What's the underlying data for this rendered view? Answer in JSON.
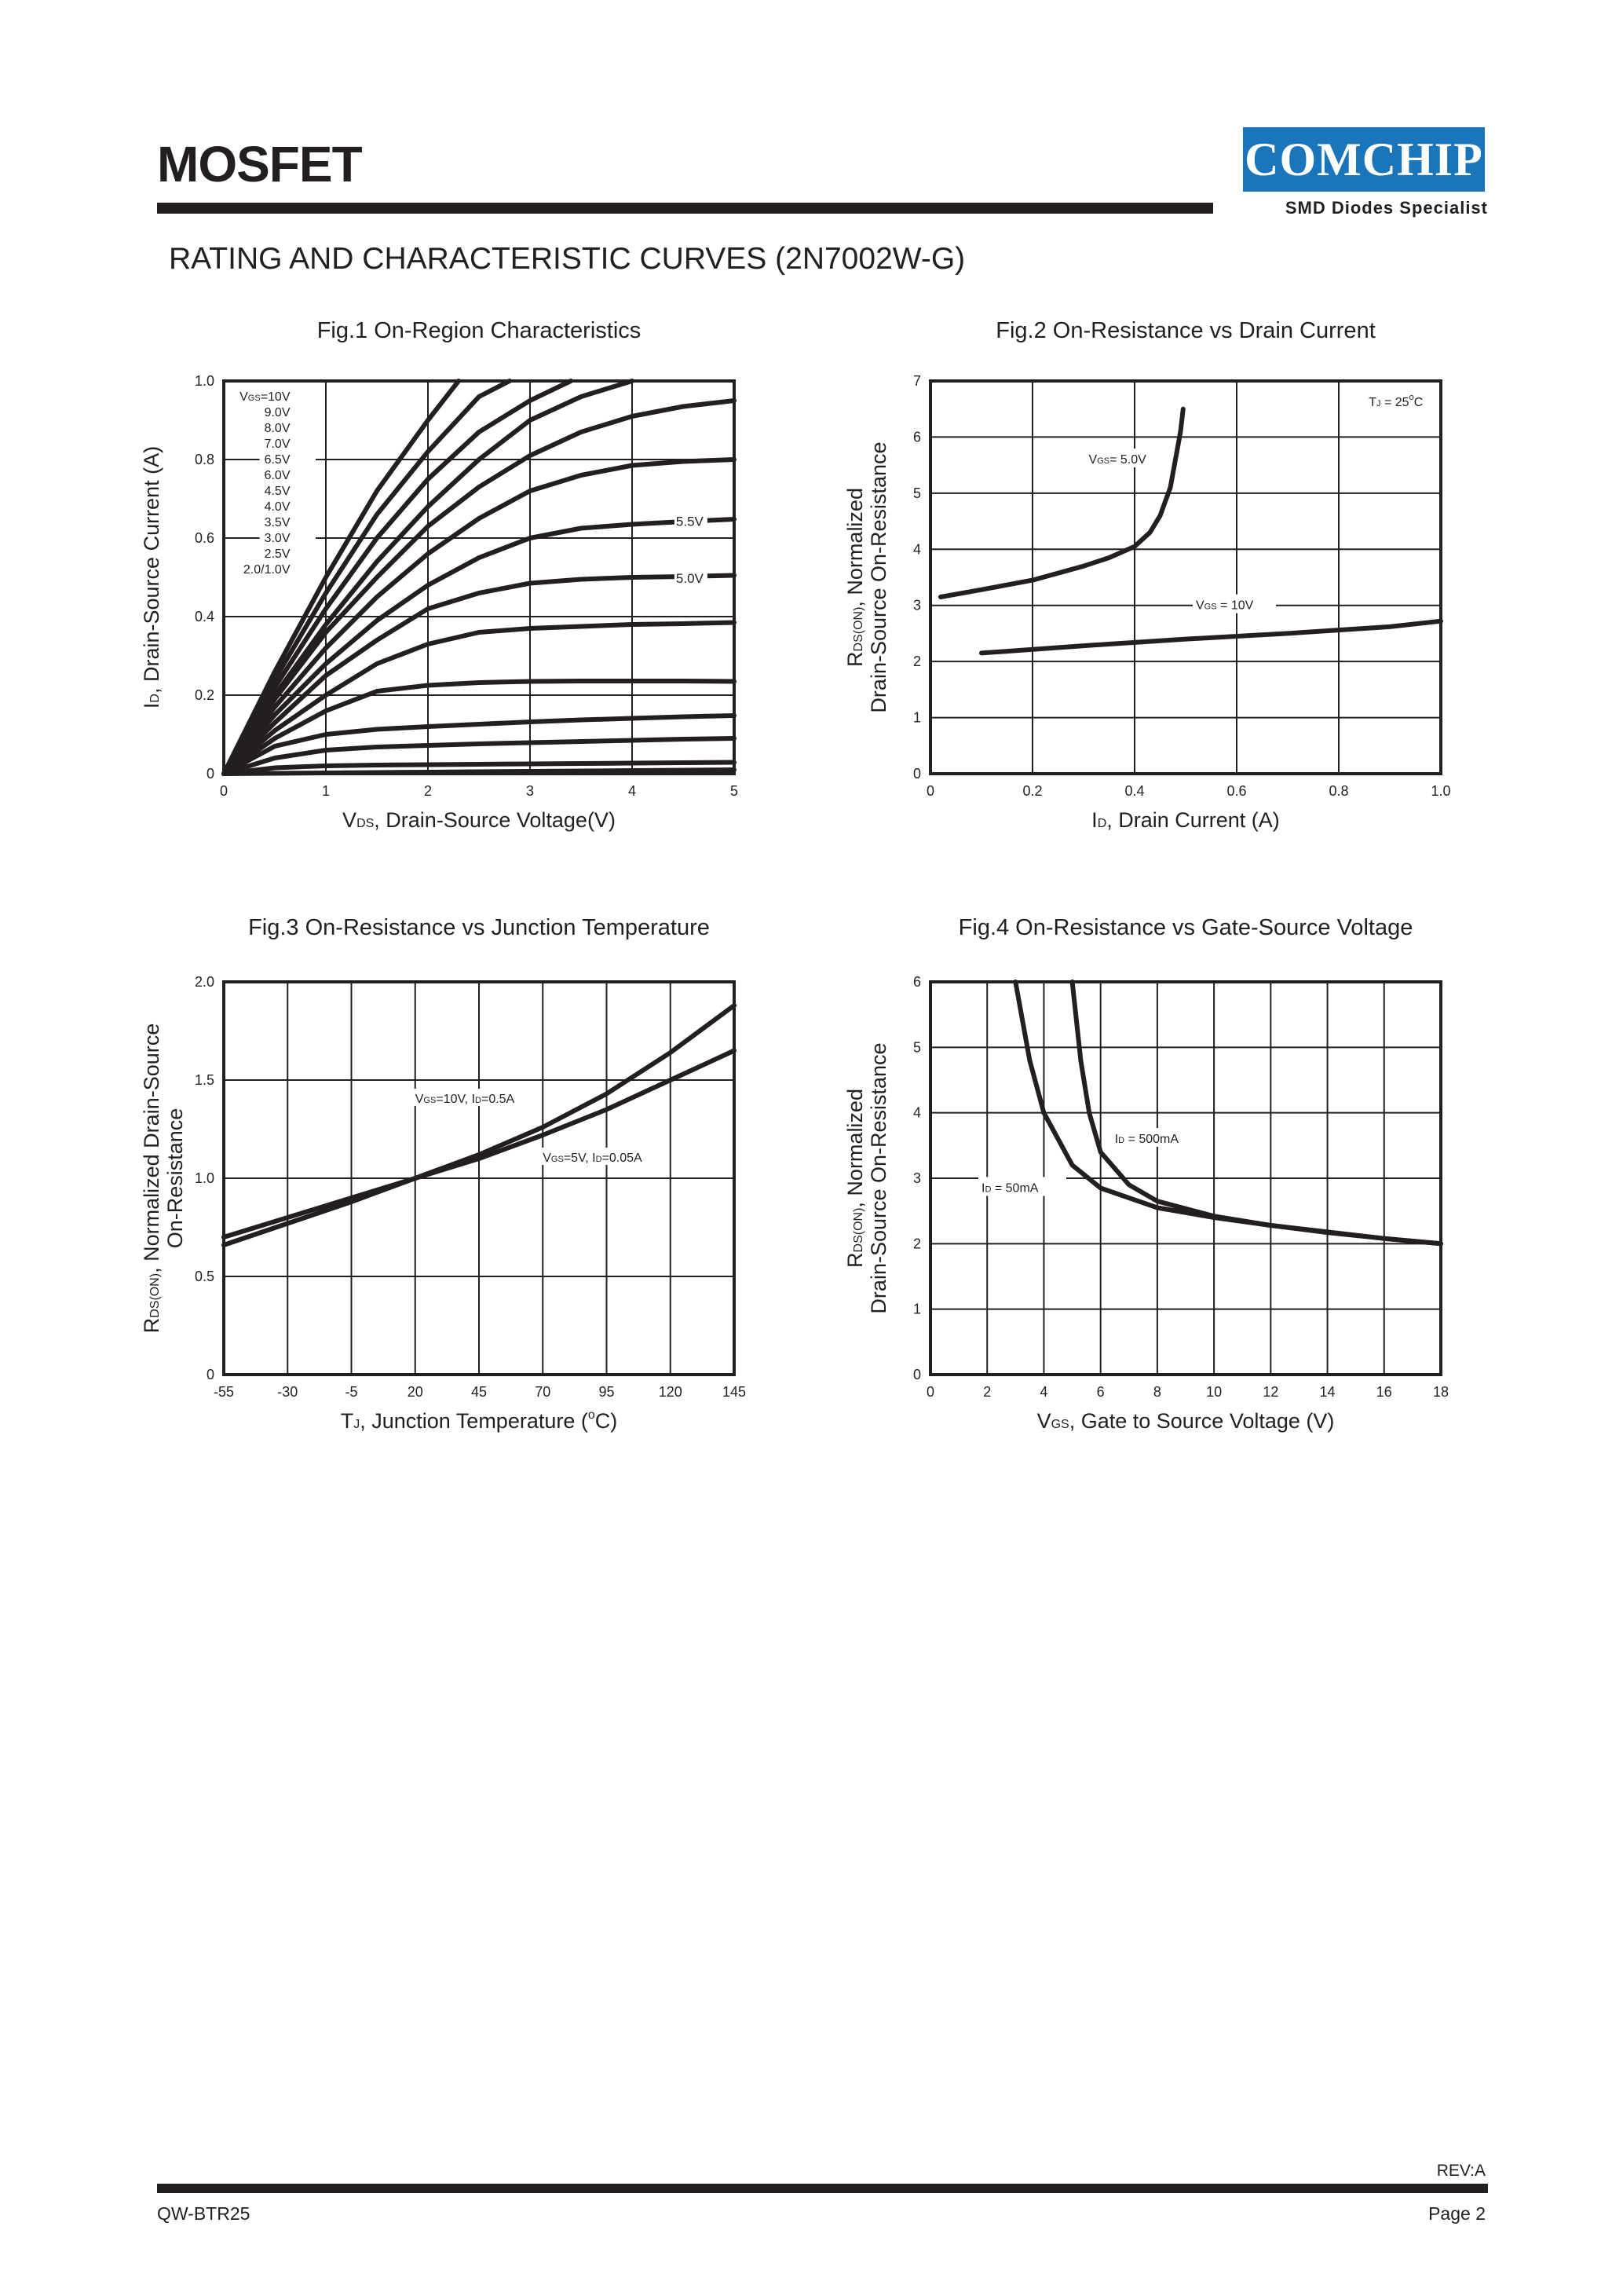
{
  "header": {
    "title": "MOSFET",
    "logo_text": "COMCHIP",
    "logo_tagline": "SMD Diodes Specialist",
    "section_title": "RATING AND CHARACTERISTIC CURVES (2N7002W-G)"
  },
  "footer": {
    "rev": "REV:A",
    "doc": "QW-BTR25",
    "page": "Page 2"
  },
  "colors": {
    "ink": "#231f20",
    "logo_blue": "#1b75bb"
  },
  "chart_data": [
    {
      "type": "line",
      "title": "Fig.1 On-Region Characteristics",
      "xlabel": "V",
      "xlabel_sub": "DS",
      "xlabel_rest": ", Drain-Source Voltage(V)",
      "ylabel": "I",
      "ylabel_sub": "D",
      "ylabel_rest": ", Drain-Source Current (A)",
      "xlim": [
        0,
        5
      ],
      "ylim": [
        0,
        1.0
      ],
      "xticks": [
        0,
        1,
        2,
        3,
        4,
        5
      ],
      "xtick_labels": [
        "0",
        "1",
        "2",
        "3",
        "4",
        "5"
      ],
      "yticks": [
        0,
        0.2,
        0.4,
        0.6,
        0.8,
        1.0
      ],
      "ytick_labels": [
        "0",
        "0.2",
        "0.4",
        "0.6",
        "0.8",
        "1.0"
      ],
      "grid": true,
      "legend_label": "V",
      "legend_label_sub": "GS",
      "legend_label_rest": "=10V",
      "legend_lines": [
        "9.0V",
        "8.0V",
        "7.0V",
        "6.5V",
        "6.0V",
        "4.5V",
        "4.0V",
        "3.5V",
        "3.0V",
        "2.5V",
        "2.0/1.0V"
      ],
      "annotations": [
        "5.5V",
        "5.0V"
      ],
      "series": [
        {
          "name": "10V",
          "x": [
            0,
            0.5,
            1,
            1.5,
            2,
            2.3
          ],
          "y": [
            0,
            0.26,
            0.5,
            0.72,
            0.9,
            1.0
          ]
        },
        {
          "name": "9.0V",
          "x": [
            0,
            0.5,
            1,
            1.5,
            2,
            2.5,
            2.8
          ],
          "y": [
            0,
            0.24,
            0.46,
            0.66,
            0.82,
            0.96,
            1.0
          ]
        },
        {
          "name": "8.0V",
          "x": [
            0,
            0.5,
            1,
            1.5,
            2,
            2.5,
            3,
            3.4
          ],
          "y": [
            0,
            0.22,
            0.42,
            0.6,
            0.75,
            0.87,
            0.95,
            1.0
          ]
        },
        {
          "name": "7.0V",
          "x": [
            0,
            0.5,
            1,
            1.5,
            2,
            2.5,
            3,
            3.5,
            4
          ],
          "y": [
            0,
            0.2,
            0.38,
            0.54,
            0.68,
            0.8,
            0.9,
            0.96,
            1.0
          ]
        },
        {
          "name": "6.5V",
          "x": [
            0,
            0.5,
            1,
            1.5,
            2,
            2.5,
            3,
            3.5,
            4,
            4.5,
            5
          ],
          "y": [
            0,
            0.19,
            0.36,
            0.5,
            0.63,
            0.73,
            0.81,
            0.87,
            0.91,
            0.935,
            0.95
          ]
        },
        {
          "name": "6.0V",
          "x": [
            0,
            0.5,
            1,
            1.5,
            2,
            2.5,
            3,
            3.5,
            4,
            4.5,
            5
          ],
          "y": [
            0,
            0.17,
            0.32,
            0.45,
            0.56,
            0.65,
            0.72,
            0.76,
            0.785,
            0.795,
            0.8
          ]
        },
        {
          "name": "5.5V",
          "x": [
            0,
            0.5,
            1,
            1.5,
            2,
            2.5,
            3,
            3.5,
            4,
            4.5,
            5
          ],
          "y": [
            0,
            0.15,
            0.28,
            0.39,
            0.48,
            0.55,
            0.6,
            0.625,
            0.635,
            0.642,
            0.648
          ]
        },
        {
          "name": "5.0V",
          "x": [
            0,
            0.5,
            1,
            1.5,
            2,
            2.5,
            3,
            3.5,
            4,
            4.5,
            5
          ],
          "y": [
            0,
            0.13,
            0.25,
            0.34,
            0.42,
            0.46,
            0.485,
            0.495,
            0.5,
            0.502,
            0.505
          ]
        },
        {
          "name": "4.5V",
          "x": [
            0,
            0.5,
            1,
            1.5,
            2,
            2.5,
            3,
            3.5,
            4,
            4.5,
            5
          ],
          "y": [
            0,
            0.11,
            0.2,
            0.28,
            0.33,
            0.36,
            0.37,
            0.375,
            0.38,
            0.382,
            0.385
          ]
        },
        {
          "name": "4.0V",
          "x": [
            0,
            0.5,
            1,
            1.5,
            2,
            2.5,
            3,
            3.5,
            4,
            4.5,
            5
          ],
          "y": [
            0,
            0.09,
            0.16,
            0.21,
            0.225,
            0.232,
            0.235,
            0.236,
            0.236,
            0.236,
            0.235
          ]
        },
        {
          "name": "3.5V",
          "x": [
            0,
            0.5,
            1,
            1.5,
            2,
            2.5,
            3,
            3.5,
            4,
            4.5,
            5
          ],
          "y": [
            0,
            0.07,
            0.1,
            0.113,
            0.12,
            0.126,
            0.132,
            0.137,
            0.141,
            0.145,
            0.148
          ]
        },
        {
          "name": "3.0V",
          "x": [
            0,
            0.5,
            1,
            1.5,
            2,
            2.5,
            3,
            3.5,
            4,
            4.5,
            5
          ],
          "y": [
            0,
            0.04,
            0.06,
            0.068,
            0.072,
            0.076,
            0.079,
            0.082,
            0.085,
            0.088,
            0.09
          ]
        },
        {
          "name": "2.5V",
          "x": [
            0,
            0.5,
            1,
            1.5,
            2,
            2.5,
            3,
            3.5,
            4,
            4.5,
            5
          ],
          "y": [
            0,
            0.015,
            0.02,
            0.022,
            0.023,
            0.024,
            0.025,
            0.026,
            0.027,
            0.028,
            0.029
          ]
        },
        {
          "name": "2.0/1.0V",
          "x": [
            0,
            1,
            2,
            3,
            4,
            5
          ],
          "y": [
            0,
            0.002,
            0.004,
            0.006,
            0.008,
            0.01
          ]
        }
      ]
    },
    {
      "type": "line",
      "title": "Fig.2 On-Resistance vs Drain Current",
      "xlabel": "I",
      "xlabel_sub": "D",
      "xlabel_rest": ", Drain Current (A)",
      "ylabel": "R",
      "ylabel_sub": "DS(ON)",
      "ylabel_rest": ", Normalized",
      "ylabel2": "Drain-Source On-Resistance",
      "xlim": [
        0,
        1.0
      ],
      "ylim": [
        0,
        7
      ],
      "xticks": [
        0,
        0.2,
        0.4,
        0.6,
        0.8,
        1.0
      ],
      "xtick_labels": [
        "0",
        "0.2",
        "0.4",
        "0.6",
        "0.8",
        "1.0"
      ],
      "yticks": [
        0,
        1,
        2,
        3,
        4,
        5,
        6,
        7
      ],
      "ytick_labels": [
        "0",
        "1",
        "2",
        "3",
        "4",
        "5",
        "6",
        "7"
      ],
      "grid": true,
      "condition": "T",
      "condition_sub": "J",
      "condition_rest": " = 25",
      "condition_sup": "o",
      "condition_end": "C",
      "series": [
        {
          "name": "V",
          "name_sub": "GS",
          "name_rest": "= 5.0V",
          "x": [
            0.02,
            0.1,
            0.2,
            0.3,
            0.35,
            0.4,
            0.43,
            0.45,
            0.47,
            0.48,
            0.49,
            0.495
          ],
          "y": [
            3.15,
            3.28,
            3.45,
            3.7,
            3.85,
            4.05,
            4.3,
            4.6,
            5.1,
            5.6,
            6.1,
            6.5
          ]
        },
        {
          "name": "V",
          "name_sub": "GS",
          "name_rest": " = 10V",
          "x": [
            0.1,
            0.3,
            0.5,
            0.7,
            0.9,
            1.0
          ],
          "y": [
            2.15,
            2.28,
            2.4,
            2.5,
            2.62,
            2.72
          ]
        }
      ]
    },
    {
      "type": "line",
      "title": "Fig.3 On-Resistance vs Junction Temperature",
      "xlabel": "T",
      "xlabel_sub": "J",
      "xlabel_rest": ", Junction Temperature (",
      "xlabel_sup": "o",
      "xlabel_end": "C)",
      "ylabel": "R",
      "ylabel_sub": "DS(ON)",
      "ylabel_rest": ", Normalized Drain-Source",
      "ylabel2": "On-Resistance",
      "xlim": [
        -55,
        145
      ],
      "ylim": [
        0,
        2.0
      ],
      "xticks": [
        -55,
        -30,
        -5,
        20,
        45,
        70,
        95,
        120,
        145
      ],
      "xtick_labels": [
        "-55",
        "-30",
        "-5",
        "20",
        "45",
        "70",
        "95",
        "120",
        "145"
      ],
      "yticks": [
        0,
        0.5,
        1.0,
        1.5,
        2.0
      ],
      "ytick_labels": [
        "0",
        "0.5",
        "1.0",
        "1.5",
        "2.0"
      ],
      "grid": true,
      "series": [
        {
          "name": "V",
          "name_sub": "GS",
          "name_rest": "=10V, I",
          "name_sub2": "D",
          "name_end": "=0.5A",
          "x": [
            -55,
            -30,
            -5,
            20,
            45,
            70,
            95,
            120,
            145
          ],
          "y": [
            0.66,
            0.77,
            0.88,
            1.0,
            1.12,
            1.26,
            1.43,
            1.64,
            1.88
          ]
        },
        {
          "name": "V",
          "name_sub": "GS",
          "name_rest": "=5V, I",
          "name_sub2": "D",
          "name_end": "=0.05A",
          "x": [
            -55,
            -30,
            -5,
            20,
            45,
            70,
            95,
            120,
            145
          ],
          "y": [
            0.7,
            0.8,
            0.9,
            1.0,
            1.1,
            1.22,
            1.35,
            1.5,
            1.65
          ]
        }
      ]
    },
    {
      "type": "line",
      "title": "Fig.4 On-Resistance vs Gate-Source Voltage",
      "xlabel": "V",
      "xlabel_sub": "GS",
      "xlabel_rest": ", Gate to Source Voltage (V)",
      "ylabel": "R",
      "ylabel_sub": "DS(ON)",
      "ylabel_rest": ", Normalized",
      "ylabel2": "Drain-Source On-Resistance",
      "xlim": [
        0,
        18
      ],
      "ylim": [
        0,
        6
      ],
      "xticks": [
        0,
        2,
        4,
        6,
        8,
        10,
        12,
        14,
        16,
        18
      ],
      "xtick_labels": [
        "0",
        "2",
        "4",
        "6",
        "8",
        "10",
        "12",
        "14",
        "16",
        "18"
      ],
      "yticks": [
        0,
        1,
        2,
        3,
        4,
        5,
        6
      ],
      "ytick_labels": [
        "0",
        "1",
        "2",
        "3",
        "4",
        "5",
        "6"
      ],
      "grid": true,
      "series": [
        {
          "name": "I",
          "name_sub": "D",
          "name_rest": "  = 50mA",
          "x": [
            3.0,
            3.5,
            4.0,
            5.0,
            6.0,
            8.0,
            10.0,
            12.0,
            14.0,
            16.0,
            18.0
          ],
          "y": [
            6.0,
            4.8,
            4.0,
            3.2,
            2.85,
            2.55,
            2.4,
            2.28,
            2.18,
            2.08,
            2.0
          ]
        },
        {
          "name": "I",
          "name_sub": "D",
          "name_rest": "  = 500mA",
          "x": [
            5.0,
            5.3,
            5.6,
            6.0,
            7.0,
            8.0,
            10.0,
            12.0,
            14.0,
            16.0,
            18.0
          ],
          "y": [
            6.0,
            4.8,
            4.0,
            3.4,
            2.9,
            2.65,
            2.42,
            2.28,
            2.17,
            2.08,
            2.0
          ]
        }
      ]
    }
  ]
}
